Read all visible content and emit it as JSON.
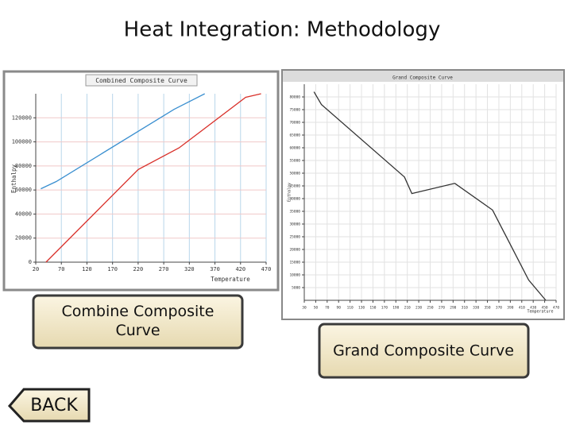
{
  "title": "Heat Integration: Methodology",
  "buttons": [
    "Combine Composite Curve",
    "Grand Composite Curve",
    "BACK"
  ],
  "chart_data": [
    {
      "type": "line",
      "title": "Combined Composite Curve",
      "x_label": "Temperature",
      "y_label": "Enthalpy",
      "xlim": [
        20,
        470
      ],
      "xticks": [
        20,
        70,
        120,
        170,
        220,
        270,
        320,
        370,
        420,
        470
      ],
      "ylim": [
        0,
        140000
      ],
      "yticks": [
        0,
        20000,
        40000,
        60000,
        80000,
        100000,
        120000
      ],
      "grid": true,
      "series": [
        {
          "color": "#d9302a",
          "x": [
            40,
            220,
            300,
            430,
            460
          ],
          "values": [
            0,
            77000,
            95000,
            137000,
            140000
          ]
        },
        {
          "color": "#3a8fd0",
          "x": [
            30,
            60,
            290,
            350
          ],
          "values": [
            61000,
            67000,
            127000,
            140000
          ]
        }
      ]
    },
    {
      "type": "line",
      "title": "Grand Composite Curve",
      "x_label": "Temperature",
      "y_label": "Enthalpy",
      "xlim": [
        30,
        470
      ],
      "xticks": [
        30,
        50,
        70,
        90,
        110,
        130,
        150,
        170,
        190,
        210,
        230,
        250,
        270,
        290,
        310,
        330,
        350,
        370,
        390,
        410,
        430,
        450,
        470
      ],
      "ylim": [
        0,
        85000
      ],
      "yticks": [
        5000,
        10000,
        15000,
        20000,
        25000,
        30000,
        35000,
        40000,
        45000,
        50000,
        55000,
        60000,
        65000,
        70000,
        75000,
        80000
      ],
      "grid": true,
      "series": [
        {
          "color": "#333333",
          "x": [
            47,
            60,
            205,
            218,
            293,
            359,
            422,
            452
          ],
          "values": [
            82000,
            77000,
            48500,
            42000,
            46000,
            35500,
            8000,
            0
          ]
        }
      ]
    }
  ]
}
